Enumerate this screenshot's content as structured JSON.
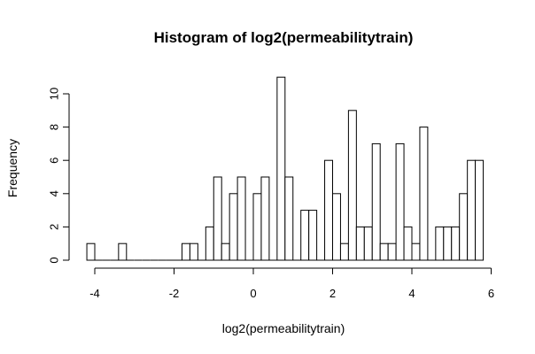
{
  "chart_data": {
    "type": "bar",
    "title": "Histogram of log2(permeabilitytrain)",
    "xlabel": "log2(permeabilitytrain)",
    "ylabel": "Frequency",
    "bin_width": 0.2,
    "bins": [
      {
        "start": -4.2,
        "count": 1
      },
      {
        "start": -4.0,
        "count": 0
      },
      {
        "start": -3.8,
        "count": 0
      },
      {
        "start": -3.6,
        "count": 0
      },
      {
        "start": -3.4,
        "count": 1
      },
      {
        "start": -3.2,
        "count": 0
      },
      {
        "start": -3.0,
        "count": 0
      },
      {
        "start": -2.8,
        "count": 0
      },
      {
        "start": -2.6,
        "count": 0
      },
      {
        "start": -2.4,
        "count": 0
      },
      {
        "start": -2.2,
        "count": 0
      },
      {
        "start": -2.0,
        "count": 0
      },
      {
        "start": -1.8,
        "count": 1
      },
      {
        "start": -1.6,
        "count": 1
      },
      {
        "start": -1.4,
        "count": 0
      },
      {
        "start": -1.2,
        "count": 2
      },
      {
        "start": -1.0,
        "count": 5
      },
      {
        "start": -0.8,
        "count": 1
      },
      {
        "start": -0.6,
        "count": 4
      },
      {
        "start": -0.4,
        "count": 5
      },
      {
        "start": -0.2,
        "count": 0
      },
      {
        "start": 0.0,
        "count": 4
      },
      {
        "start": 0.2,
        "count": 5
      },
      {
        "start": 0.4,
        "count": 0
      },
      {
        "start": 0.6,
        "count": 11
      },
      {
        "start": 0.8,
        "count": 5
      },
      {
        "start": 1.0,
        "count": 0
      },
      {
        "start": 1.2,
        "count": 3
      },
      {
        "start": 1.4,
        "count": 3
      },
      {
        "start": 1.6,
        "count": 0
      },
      {
        "start": 1.8,
        "count": 6
      },
      {
        "start": 2.0,
        "count": 4
      },
      {
        "start": 2.2,
        "count": 1
      },
      {
        "start": 2.4,
        "count": 9
      },
      {
        "start": 2.6,
        "count": 2
      },
      {
        "start": 2.8,
        "count": 2
      },
      {
        "start": 3.0,
        "count": 7
      },
      {
        "start": 3.2,
        "count": 1
      },
      {
        "start": 3.4,
        "count": 1
      },
      {
        "start": 3.6,
        "count": 7
      },
      {
        "start": 3.8,
        "count": 2
      },
      {
        "start": 4.0,
        "count": 1
      },
      {
        "start": 4.2,
        "count": 8
      },
      {
        "start": 4.4,
        "count": 0
      },
      {
        "start": 4.6,
        "count": 2
      },
      {
        "start": 4.8,
        "count": 2
      },
      {
        "start": 5.0,
        "count": 2
      },
      {
        "start": 5.2,
        "count": 4
      },
      {
        "start": 5.4,
        "count": 6
      },
      {
        "start": 5.6,
        "count": 6
      }
    ],
    "xlim": [
      -4.2,
      5.8
    ],
    "ylim": [
      0,
      11
    ],
    "x_ticks": [
      -4,
      -2,
      0,
      2,
      4,
      6
    ],
    "y_ticks": [
      0,
      2,
      4,
      6,
      8,
      10
    ],
    "grid": false,
    "bar_fill": "#ffffff",
    "bar_stroke": "#000000"
  }
}
